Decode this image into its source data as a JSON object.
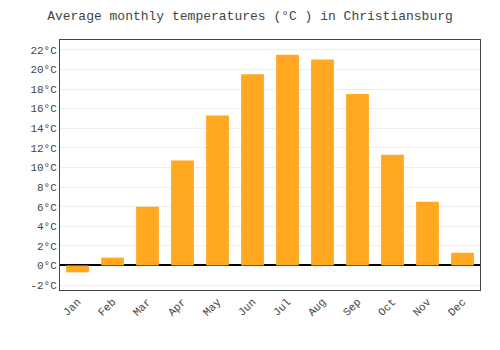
{
  "chart_data": {
    "type": "bar",
    "title": "Average monthly temperatures (°C ) in Christiansburg",
    "categories": [
      "Jan",
      "Feb",
      "Mar",
      "Apr",
      "May",
      "Jun",
      "Jul",
      "Aug",
      "Sep",
      "Oct",
      "Nov",
      "Dec"
    ],
    "values": [
      -0.7,
      0.8,
      6.0,
      10.7,
      15.3,
      19.5,
      21.5,
      21.0,
      17.5,
      11.3,
      6.5,
      1.3
    ],
    "color": "#FFA820",
    "ylim": [
      -2.5,
      23
    ],
    "yticks": [
      {
        "value": -2,
        "label": "-2°C"
      },
      {
        "value": 0,
        "label": "0°C"
      },
      {
        "value": 2,
        "label": "2°C"
      },
      {
        "value": 4,
        "label": "4°C"
      },
      {
        "value": 6,
        "label": "6°C"
      },
      {
        "value": 8,
        "label": "8°C"
      },
      {
        "value": 10,
        "label": "10°C"
      },
      {
        "value": 12,
        "label": "12°C"
      },
      {
        "value": 14,
        "label": "14°C"
      },
      {
        "value": 16,
        "label": "16°C"
      },
      {
        "value": 18,
        "label": "18°C"
      },
      {
        "value": 20,
        "label": "20°C"
      },
      {
        "value": 22,
        "label": "22°C"
      }
    ],
    "grid": true
  }
}
